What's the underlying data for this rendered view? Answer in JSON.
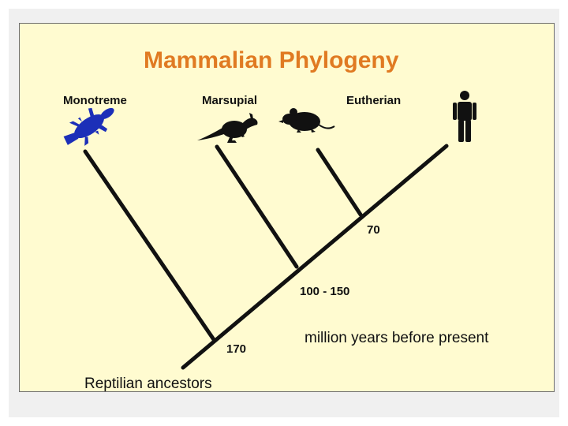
{
  "title": "Mammalian Phylogeny",
  "taxa": {
    "monotreme": "Monotreme",
    "marsupial": "Marsupial",
    "eutherian": "Eutherian"
  },
  "nodes": {
    "root": "170",
    "marsupial_split": "100 - 150",
    "eutherian_split": "70"
  },
  "time_note": "million years before present",
  "root_label": "Reptilian ancestors",
  "colors": {
    "title": "#e07a22",
    "monotreme_silhouette": "#1c2fb8",
    "branches": "#111111",
    "background": "#fffbd0"
  },
  "icons": [
    "platypus-icon",
    "kangaroo-icon",
    "mouse-icon",
    "human-icon"
  ]
}
